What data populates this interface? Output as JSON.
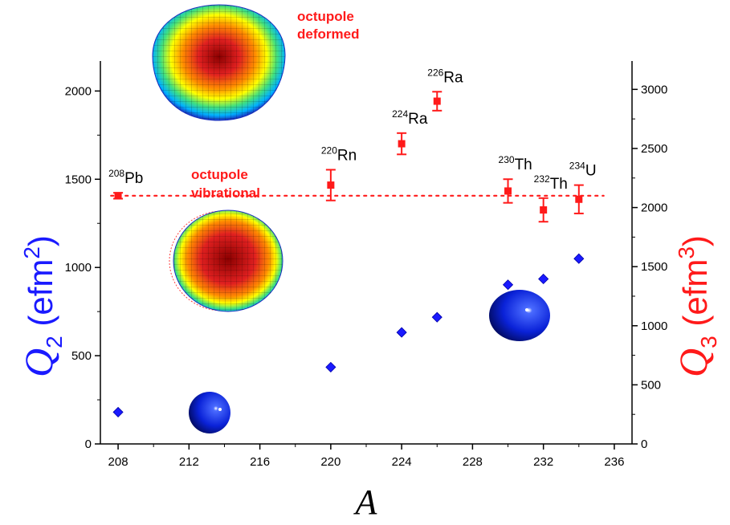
{
  "chart_data": {
    "type": "scatter",
    "xlabel": "A",
    "xlim": [
      207,
      237
    ],
    "xticks": [
      208,
      212,
      216,
      220,
      224,
      228,
      232,
      236
    ],
    "left_axis": {
      "label_main": "Q",
      "label_sub": "2",
      "label_unit_open": " (efm",
      "label_unit_sup": "2",
      "label_unit_close": ")",
      "color": "#1a1aff",
      "ylim": [
        0,
        2170
      ],
      "yticks": [
        0,
        500,
        1000,
        1500,
        2000
      ]
    },
    "right_axis": {
      "label_main": "Q",
      "label_sub": "3",
      "label_unit_open": " (efm",
      "label_unit_sup": "3",
      "label_unit_close": ")",
      "color": "#ff1a1a",
      "ylim": [
        0,
        3240
      ],
      "yticks": [
        0,
        500,
        1000,
        1500,
        2000,
        2500,
        3000
      ]
    },
    "series": [
      {
        "axis": "left",
        "marker": "diamond",
        "color": "#1a1aff",
        "points": [
          {
            "x": 208,
            "y": 180
          },
          {
            "x": 220,
            "y": 435
          },
          {
            "x": 224,
            "y": 632
          },
          {
            "x": 226,
            "y": 718
          },
          {
            "x": 230,
            "y": 902
          },
          {
            "x": 232,
            "y": 935
          },
          {
            "x": 234,
            "y": 1050
          }
        ]
      },
      {
        "axis": "right",
        "marker": "square",
        "color": "#ff1a1a",
        "points": [
          {
            "x": 208,
            "y": 2100,
            "err": 25
          },
          {
            "x": 220,
            "y": 2190,
            "err": 130
          },
          {
            "x": 224,
            "y": 2540,
            "err": 90
          },
          {
            "x": 226,
            "y": 2900,
            "err": 80
          },
          {
            "x": 230,
            "y": 2140,
            "err": 100
          },
          {
            "x": 232,
            "y": 1980,
            "err": 100
          },
          {
            "x": 234,
            "y": 2070,
            "err": 120
          }
        ]
      }
    ],
    "reference_line": {
      "axis": "right",
      "y": 2100,
      "color": "#ff1a1a",
      "style": "dotted"
    },
    "nuclei": [
      {
        "mass": "208",
        "symbol": "Pb",
        "x": 208
      },
      {
        "mass": "220",
        "symbol": "Rn",
        "x": 220
      },
      {
        "mass": "224",
        "symbol": "Ra",
        "x": 224
      },
      {
        "mass": "226",
        "symbol": "Ra",
        "x": 226
      },
      {
        "mass": "230",
        "symbol": "Th",
        "x": 230
      },
      {
        "mass": "232",
        "symbol": "Th",
        "x": 232
      },
      {
        "mass": "234",
        "symbol": "U",
        "x": 234
      }
    ],
    "annotations": [
      {
        "lines": [
          "octupole",
          "deformed"
        ],
        "color": "#ff1a1a"
      },
      {
        "lines": [
          "octupole",
          "vibrational"
        ],
        "color": "#ff1a1a"
      }
    ],
    "grid": false
  }
}
